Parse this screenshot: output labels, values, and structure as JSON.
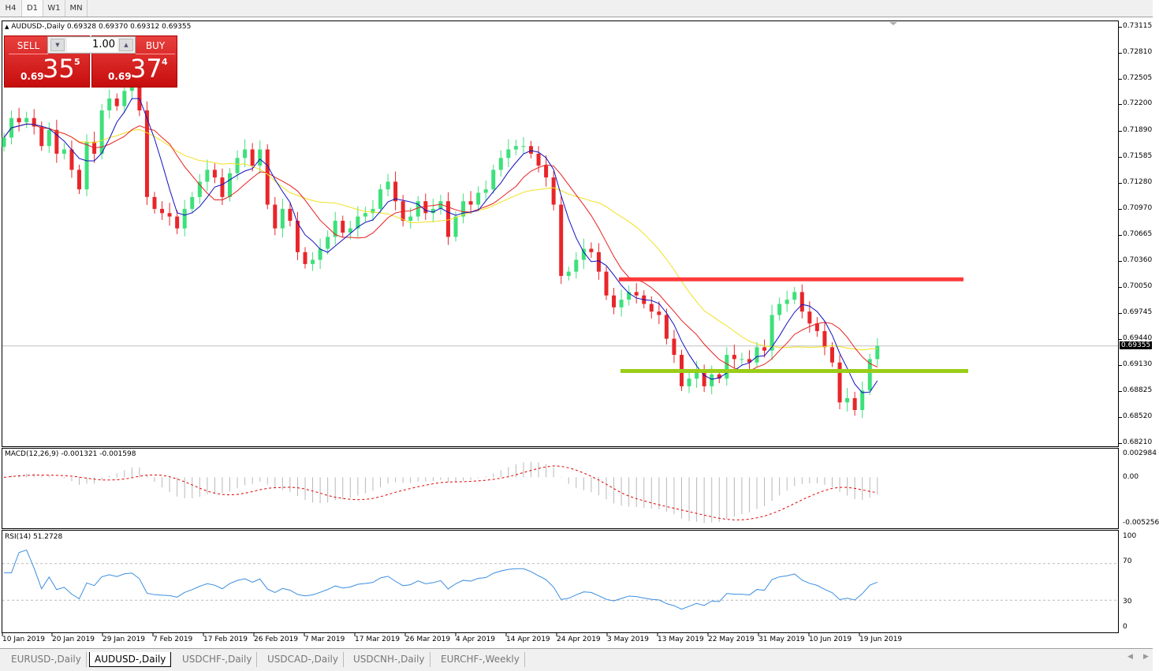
{
  "toolbar": {
    "timeframes": [
      "H4",
      "D1",
      "W1",
      "MN"
    ],
    "selected": "D1"
  },
  "chart": {
    "header": "AUDUSD-,Daily  0.69328 0.69370 0.69312 0.69355",
    "symbol": "AUDUSD-",
    "period": "Daily",
    "ohlc": [
      "0.69328",
      "0.69370",
      "0.69312",
      "0.69355"
    ],
    "current_price": "0.69355",
    "price_axis": [
      "0.73115",
      "0.72810",
      "0.72505",
      "0.72200",
      "0.71890",
      "0.71585",
      "0.71280",
      "0.70970",
      "0.70665",
      "0.70360",
      "0.70050",
      "0.69745",
      "0.69440",
      "0.69130",
      "0.68825",
      "0.68520",
      "0.68210"
    ],
    "date_axis": [
      "10 Jan 2019",
      "20 Jan 2019",
      "29 Jan 2019",
      "7 Feb 2019",
      "17 Feb 2019",
      "26 Feb 2019",
      "7 Mar 2019",
      "17 Mar 2019",
      "26 Mar 2019",
      "4 Apr 2019",
      "14 Apr 2019",
      "24 Apr 2019",
      "3 May 2019",
      "13 May 2019",
      "22 May 2019",
      "31 May 2019",
      "10 Jun 2019",
      "19 Jun 2019"
    ],
    "first_open": 0.717,
    "closes": [
      0.7181,
      0.7204,
      0.7199,
      0.7204,
      0.7194,
      0.7171,
      0.719,
      0.7162,
      0.7167,
      0.7143,
      0.712,
      0.7176,
      0.7162,
      0.7213,
      0.7227,
      0.7218,
      0.7236,
      0.7241,
      0.7213,
      0.7111,
      0.7097,
      0.7092,
      0.7088,
      0.7074,
      0.7097,
      0.7111,
      0.7129,
      0.7143,
      0.7134,
      0.7111,
      0.7139,
      0.7157,
      0.7167,
      0.7148,
      0.7167,
      0.7102,
      0.7074,
      0.7097,
      0.7083,
      0.7046,
      0.7032,
      0.7037,
      0.705,
      0.7064,
      0.7083,
      0.7069,
      0.7074,
      0.7088,
      0.7092,
      0.7097,
      0.712,
      0.7129,
      0.7106,
      0.7083,
      0.7088,
      0.7106,
      0.7092,
      0.7097,
      0.7106,
      0.7064,
      0.7088,
      0.7106,
      0.7102,
      0.7116,
      0.712,
      0.7143,
      0.7157,
      0.7167,
      0.7171,
      0.7171,
      0.7162,
      0.7148,
      0.7134,
      0.7102,
      0.7018,
      0.7023,
      0.7037,
      0.705,
      0.7046,
      0.7023,
      0.6995,
      0.6981,
      0.699,
      0.6999,
      0.6995,
      0.6985,
      0.6976,
      0.6972,
      0.6944,
      0.6925,
      0.6888,
      0.6897,
      0.6906,
      0.6888,
      0.6902,
      0.6897,
      0.6925,
      0.692,
      0.692,
      0.6916,
      0.6934,
      0.693,
      0.6972,
      0.6985,
      0.699,
      0.6999,
      0.6976,
      0.6962,
      0.6953,
      0.6934,
      0.6916,
      0.6869,
      0.6874,
      0.686,
      0.6883,
      0.692,
      0.69355
    ],
    "resistance_level": 0.7014,
    "support_level": 0.6906,
    "colors": {
      "bull": "#3ee07a",
      "bear": "#e8262a",
      "ma_fast": "#1010c0",
      "ma_mid": "#e82020",
      "ma_slow": "#f0e020",
      "resistance": "#ff3a3a",
      "support": "#9acd18",
      "macd_hist": "#b8b8b8",
      "macd_signal": "#e00000",
      "rsi": "#3a8ee0"
    }
  },
  "trade": {
    "sell_label": "SELL",
    "buy_label": "BUY",
    "lot": "1.00",
    "sell_prefix": "0.69",
    "sell_big": "35",
    "sell_sup": "5",
    "buy_prefix": "0.69",
    "buy_big": "37",
    "buy_sup": "4"
  },
  "macd": {
    "label": "MACD(12,26,9) -0.001321 -0.001598",
    "axis": [
      "0.002984",
      "0.00",
      "-0.005256"
    ]
  },
  "rsi": {
    "label": "RSI(14) 51.2728",
    "axis": [
      "100",
      "70",
      "30",
      "0"
    ],
    "levels": [
      70,
      30
    ]
  },
  "tabs": [
    "EURUSD-,Daily",
    "AUDUSD-,Daily",
    "USDCHF-,Daily",
    "USDCAD-,Daily",
    "USDCNH-,Daily",
    "EURCHF-,Weekly"
  ],
  "active_tab": "AUDUSD-,Daily"
}
